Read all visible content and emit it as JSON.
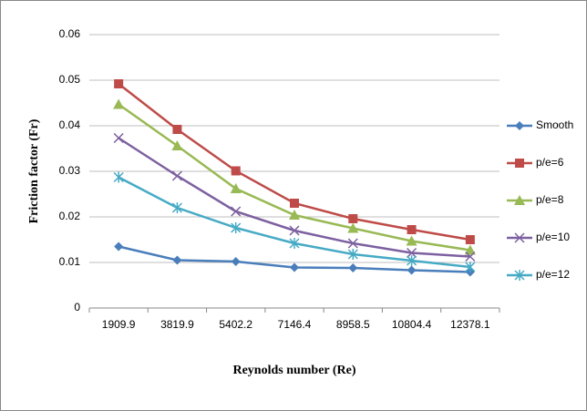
{
  "chart_data": {
    "type": "line",
    "x_label": "Reynolds number (Re)",
    "y_label": "Friction factor  (Fr)",
    "categories": [
      "1909.9",
      "3819.9",
      "5402.2",
      "7146.4",
      "8958.5",
      "10804.4",
      "12378.1"
    ],
    "series": [
      {
        "name": "Smooth",
        "color": "#4a7ebb",
        "marker": "diamond",
        "values": [
          0.0135,
          0.0105,
          0.0102,
          0.0089,
          0.0088,
          0.0083,
          0.0079
        ]
      },
      {
        "name": "p/e=6",
        "color": "#be4b48",
        "marker": "square",
        "values": [
          0.0492,
          0.0392,
          0.0301,
          0.023,
          0.0196,
          0.0172,
          0.015
        ]
      },
      {
        "name": "p/e=8",
        "color": "#98b954",
        "marker": "triangle",
        "values": [
          0.0447,
          0.0356,
          0.0262,
          0.0204,
          0.0175,
          0.0147,
          0.0127
        ]
      },
      {
        "name": "p/e=10",
        "color": "#7d60a0",
        "marker": "x",
        "values": [
          0.0373,
          0.029,
          0.0212,
          0.017,
          0.0142,
          0.0121,
          0.0113
        ]
      },
      {
        "name": "p/e=12",
        "color": "#46aac5",
        "marker": "star",
        "values": [
          0.0287,
          0.022,
          0.0176,
          0.0142,
          0.0118,
          0.0104,
          0.009
        ]
      }
    ],
    "ylim": [
      0,
      0.06
    ],
    "yticks": [
      0,
      0.01,
      0.02,
      0.03,
      0.04,
      0.05,
      0.06
    ],
    "grid": true,
    "legend": "right"
  }
}
